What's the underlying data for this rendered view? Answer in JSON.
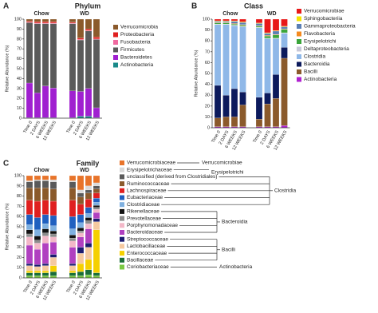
{
  "chart_data": [
    {
      "type": "stacked_bar",
      "panel_label": "A",
      "title": "Phylum",
      "ylabel": "Relative Abundance (%)",
      "group_labels": [
        "Chow",
        "WD"
      ],
      "categories": [
        "Time 0",
        "2 DAYS",
        "6 WEEKS",
        "12 WEEKS",
        "Time 0",
        "2 DAYS",
        "6 WEEKS",
        "12 WEEKS"
      ],
      "ylim": [
        0,
        100
      ],
      "yticks": [
        0,
        10,
        20,
        30,
        40,
        50,
        60,
        70,
        80,
        90,
        100
      ],
      "series": [
        {
          "name": "Verrucomicrobia",
          "color": "#8b5a2b",
          "values": [
            2,
            2.5,
            2.5,
            2.5,
            3,
            19,
            10,
            18
          ]
        },
        {
          "name": "Proteobacteria",
          "color": "#e02020",
          "values": [
            1,
            1.5,
            1.5,
            1.5,
            1,
            1.5,
            1.5,
            2
          ]
        },
        {
          "name": "Fusobacteria",
          "color": "#f06aa0",
          "values": [
            0.5,
            0.5,
            0.5,
            0.5,
            0.5,
            0.5,
            0.5,
            0.5
          ]
        },
        {
          "name": "Firmicutes",
          "color": "#5a5a5a",
          "values": [
            61,
            70,
            63,
            65,
            68,
            52,
            58,
            69
          ]
        },
        {
          "name": "Bacteroidetes",
          "color": "#a020d0",
          "values": [
            35,
            25,
            32,
            30,
            27,
            25,
            28,
            10
          ]
        },
        {
          "name": "Actinobacteria",
          "color": "#1a8a8a",
          "values": [
            0.5,
            0.5,
            0.5,
            0.5,
            0.5,
            2,
            2,
            0.5
          ]
        }
      ]
    },
    {
      "type": "stacked_bar",
      "panel_label": "B",
      "title": "Class",
      "ylabel": "Relative Abundance (%)",
      "group_labels": [
        "Chow",
        "WD"
      ],
      "categories": [
        "Time 0",
        "2 DAYS",
        "6 WEEKS",
        "12 WEEKS",
        "Time 0",
        "2 DAYS",
        "6 WEEKS",
        "12 WEEKS"
      ],
      "ylim": [
        0,
        100
      ],
      "yticks": [
        0,
        10,
        20,
        30,
        40,
        50,
        60,
        70,
        80,
        90,
        100
      ],
      "series": [
        {
          "name": "Verrucomicrobiae",
          "color": "#e81818",
          "values": [
            1.5,
            1.5,
            1.5,
            2.5,
            3.5,
            12.5,
            10.5,
            6.5
          ]
        },
        {
          "name": "Sphingobacteriia",
          "color": "#f5e400",
          "values": [
            0.5,
            0.5,
            0.5,
            0.5,
            0.5,
            0.5,
            0.5,
            0.5
          ]
        },
        {
          "name": "Gammaproteobacteria",
          "color": "#5a7fb5",
          "values": [
            1,
            1,
            2,
            2,
            2,
            2,
            3,
            2
          ]
        },
        {
          "name": "Flavobacteria",
          "color": "#f58a1f",
          "values": [
            0.5,
            0.5,
            0.5,
            0.5,
            0.5,
            0.5,
            0.5,
            0.5
          ]
        },
        {
          "name": "Erysipelotrichi",
          "color": "#3aa53a",
          "values": [
            1,
            1,
            1,
            1,
            1,
            2,
            3,
            3
          ]
        },
        {
          "name": "Deltaproteobacteria",
          "color": "#c8c8d8",
          "values": [
            0.5,
            0.5,
            0.5,
            0.5,
            0.5,
            0.5,
            0.5,
            0.5
          ]
        },
        {
          "name": "Clostridia",
          "color": "#8fb8e8",
          "values": [
            56,
            65,
            58,
            60,
            64,
            50,
            33,
            13
          ]
        },
        {
          "name": "Bacteroidia",
          "color": "#0c1a5c",
          "values": [
            30,
            20,
            26,
            12,
            20,
            10,
            22,
            10
          ]
        },
        {
          "name": "Bacilli",
          "color": "#8b5a2b",
          "values": [
            8,
            9,
            9,
            20,
            7,
            21,
            26,
            62
          ]
        },
        {
          "name": "Actinobacteria",
          "color": "#b020d0",
          "values": [
            1,
            1,
            1,
            1,
            1,
            1,
            1,
            2
          ]
        }
      ]
    },
    {
      "type": "stacked_bar",
      "panel_label": "C",
      "title": "Family",
      "ylabel": "Relative Abundance (%)",
      "group_labels": [
        "Chow",
        "WD"
      ],
      "categories": [
        "Time 0",
        "2 DAYS",
        "6 WEEKS",
        "12 WEEKS",
        "Time 0",
        "2 DAYS",
        "6 WEEKS",
        "12 WEEKS"
      ],
      "ylim": [
        0,
        100
      ],
      "yticks": [
        0,
        10,
        20,
        30,
        40,
        50,
        60,
        70,
        80,
        90,
        100
      ],
      "legend_groups": [
        "Verrucomicrobiae",
        "Erysipelotrichi",
        "Clostridia",
        "Bacteroidia",
        "Bacilli",
        "Actinobacteria"
      ],
      "series": [
        {
          "name": "Verrucomicrobiaceae",
          "color": "#e8742a",
          "values": [
            5,
            4,
            4,
            4,
            5,
            14,
            10,
            7
          ]
        },
        {
          "name": "Erysipelotrichaceae",
          "color": "#d9d9d9",
          "values": [
            1,
            1,
            1,
            2,
            1,
            3,
            4,
            3
          ]
        },
        {
          "name": "unclassified (derived from Clostridiales)",
          "color": "#5a5a5a",
          "values": [
            6,
            7,
            7,
            7,
            6,
            4,
            3,
            3
          ]
        },
        {
          "name": "Ruminococcaceae",
          "color": "#8b5a2b",
          "values": [
            12,
            13,
            12,
            12,
            12,
            7,
            6,
            4
          ]
        },
        {
          "name": "Lachnospiraceae",
          "color": "#e02020",
          "values": [
            14,
            16,
            14,
            14,
            16,
            10,
            8,
            5
          ]
        },
        {
          "name": "Eubacteriaceae",
          "color": "#2060c0",
          "values": [
            10,
            12,
            9,
            10,
            12,
            8,
            6,
            4
          ]
        },
        {
          "name": "Clostridiaceae",
          "color": "#7fb0e0",
          "values": [
            5,
            6,
            5,
            5,
            6,
            5,
            4,
            3
          ]
        },
        {
          "name": "Rikenellaceae",
          "color": "#111111",
          "values": [
            4,
            4,
            4,
            3,
            3,
            3,
            3,
            2
          ]
        },
        {
          "name": "Prevotellaceae",
          "color": "#8c8c8c",
          "values": [
            3,
            3,
            3,
            3,
            3,
            2,
            3,
            2
          ]
        },
        {
          "name": "Porphyromonadaceae",
          "color": "#f3b8c8",
          "values": [
            8,
            6,
            7,
            5,
            6,
            4,
            5,
            3
          ]
        },
        {
          "name": "Bacteroidaceae",
          "color": "#b040c0",
          "values": [
            18,
            15,
            20,
            12,
            16,
            10,
            14,
            6
          ]
        },
        {
          "name": "Streptococcaceae",
          "color": "#1c1c70",
          "values": [
            2,
            2,
            2,
            3,
            2,
            6,
            4,
            3
          ]
        },
        {
          "name": "Lactobacillaceae",
          "color": "#f5c9a0",
          "values": [
            5,
            4,
            5,
            8,
            5,
            10,
            12,
            8
          ]
        },
        {
          "name": "Enterococcaceae",
          "color": "#f5d000",
          "values": [
            2,
            2,
            2,
            6,
            2,
            8,
            10,
            42
          ]
        },
        {
          "name": "Bacillaceae",
          "color": "#1a6e3a",
          "values": [
            3,
            3,
            3,
            4,
            3,
            4,
            5,
            3
          ]
        },
        {
          "name": "Coriobacteriaceae",
          "color": "#7ac943",
          "values": [
            2,
            2,
            2,
            2,
            2,
            2,
            3,
            2
          ]
        }
      ]
    }
  ]
}
